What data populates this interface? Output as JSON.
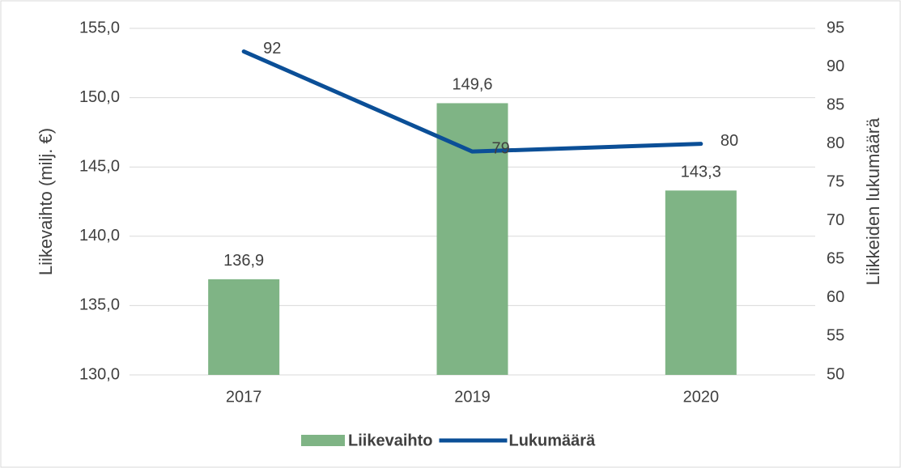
{
  "chart_data": {
    "type": "bar",
    "categories": [
      "2017",
      "2019",
      "2020"
    ],
    "series": [
      {
        "name": "Liikevaihto",
        "type": "bar",
        "color": "#7fb485",
        "values": [
          136.9,
          149.6,
          143.3
        ],
        "value_labels": [
          "136,9",
          "149,6",
          "143,3"
        ]
      },
      {
        "name": "Lukumäärä",
        "type": "line",
        "axis": "y2",
        "color": "#0b4f97",
        "values": [
          92,
          79,
          80
        ]
      }
    ],
    "ylabel": "Liikevaihto (milj. €)",
    "y2label": "Liikkeiden lukumäärä",
    "ylim": [
      130,
      155
    ],
    "yticks": [
      {
        "value": 130,
        "label": "130,0"
      },
      {
        "value": 135,
        "label": "135,0"
      },
      {
        "value": 140,
        "label": "140,0"
      },
      {
        "value": 145,
        "label": "145,0"
      },
      {
        "value": 150,
        "label": "150,0"
      },
      {
        "value": 155,
        "label": "155,0"
      }
    ],
    "y2lim": [
      50,
      95
    ],
    "y2ticks": [
      50,
      55,
      60,
      65,
      70,
      75,
      80,
      85,
      90,
      95
    ],
    "grid": true,
    "legend": "bottom"
  }
}
